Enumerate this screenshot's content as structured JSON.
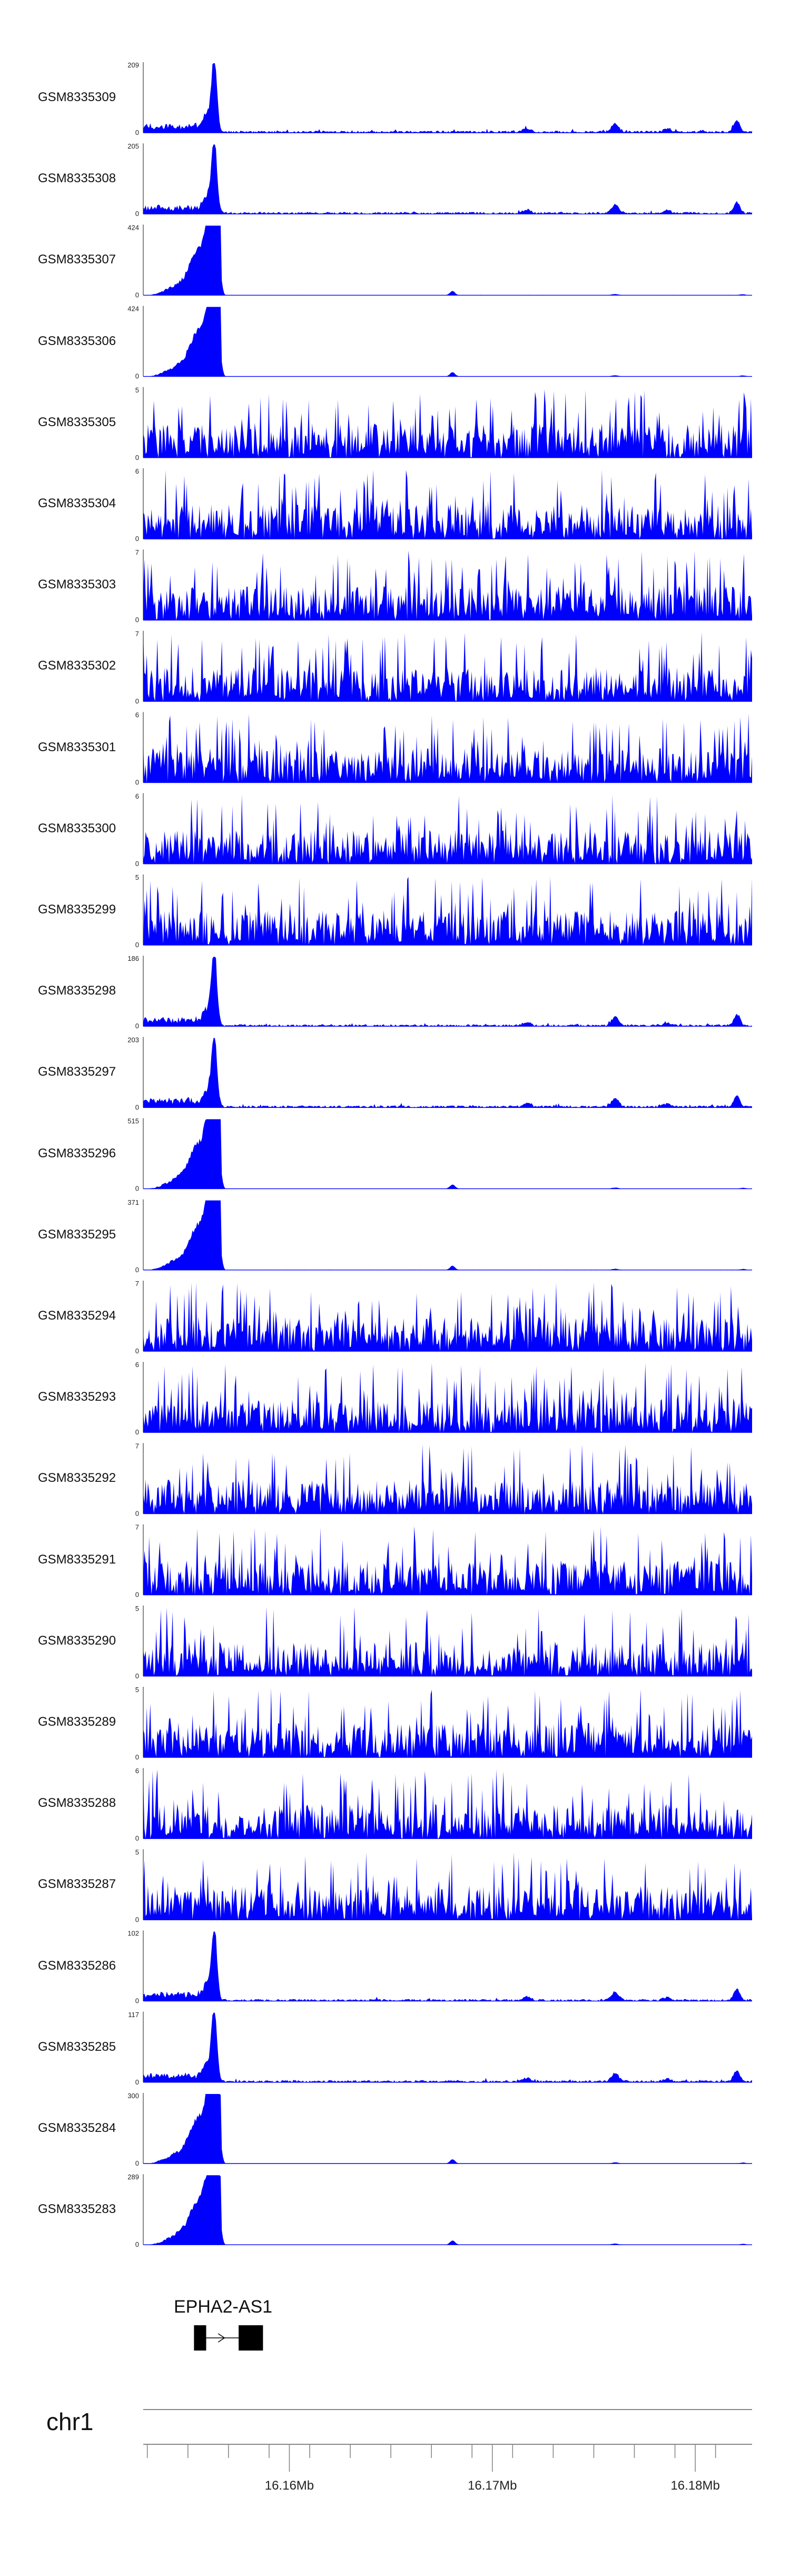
{
  "chart_data": {
    "type": "area",
    "chromosome": "chr1",
    "xlim": [
      16152800,
      16182800
    ],
    "color": "#0000ff",
    "tracks": [
      {
        "name": "GSM8335309",
        "ymax": 209,
        "profile": "peak"
      },
      {
        "name": "GSM8335308",
        "ymax": 205,
        "profile": "peak"
      },
      {
        "name": "GSM8335307",
        "ymax": 424,
        "profile": "broad"
      },
      {
        "name": "GSM8335306",
        "ymax": 424,
        "profile": "broad"
      },
      {
        "name": "GSM8335305",
        "ymax": 5,
        "profile": "noise"
      },
      {
        "name": "GSM8335304",
        "ymax": 6,
        "profile": "noise"
      },
      {
        "name": "GSM8335303",
        "ymax": 7,
        "profile": "noise"
      },
      {
        "name": "GSM8335302",
        "ymax": 7,
        "profile": "noise"
      },
      {
        "name": "GSM8335301",
        "ymax": 6,
        "profile": "noise"
      },
      {
        "name": "GSM8335300",
        "ymax": 6,
        "profile": "noise"
      },
      {
        "name": "GSM8335299",
        "ymax": 5,
        "profile": "noise"
      },
      {
        "name": "GSM8335298",
        "ymax": 186,
        "profile": "peak"
      },
      {
        "name": "GSM8335297",
        "ymax": 203,
        "profile": "peak"
      },
      {
        "name": "GSM8335296",
        "ymax": 515,
        "profile": "broad"
      },
      {
        "name": "GSM8335295",
        "ymax": 371,
        "profile": "broad"
      },
      {
        "name": "GSM8335294",
        "ymax": 7,
        "profile": "noise"
      },
      {
        "name": "GSM8335293",
        "ymax": 6,
        "profile": "noise"
      },
      {
        "name": "GSM8335292",
        "ymax": 7,
        "profile": "noise"
      },
      {
        "name": "GSM8335291",
        "ymax": 7,
        "profile": "noise"
      },
      {
        "name": "GSM8335290",
        "ymax": 5,
        "profile": "noise"
      },
      {
        "name": "GSM8335289",
        "ymax": 5,
        "profile": "noise"
      },
      {
        "name": "GSM8335288",
        "ymax": 6,
        "profile": "noise"
      },
      {
        "name": "GSM8335287",
        "ymax": 5,
        "profile": "noise"
      },
      {
        "name": "GSM8335286",
        "ymax": 102,
        "profile": "peak"
      },
      {
        "name": "GSM8335285",
        "ymax": 117,
        "profile": "peak"
      },
      {
        "name": "GSM8335284",
        "ymax": 300,
        "profile": "broad"
      },
      {
        "name": "GSM8335283",
        "ymax": 289,
        "profile": "broad"
      }
    ],
    "gene": {
      "name": "EPHA2-AS1",
      "start": 16155300,
      "end": 16158700,
      "exons": [
        [
          16155300,
          16155900
        ],
        [
          16157500,
          16158700
        ]
      ],
      "strand": "+"
    },
    "axis": {
      "minor_ticks": [
        16153000,
        16155000,
        16157000,
        16159000,
        16161000,
        16163000,
        16165000,
        16167000,
        16169000,
        16171000,
        16173000,
        16175000,
        16177000,
        16179000,
        16181000
      ],
      "major_ticks": [
        16160000,
        16170000,
        16180000
      ],
      "tick_labels": [
        "16.16Mb",
        "16.17Mb",
        "16.18Mb"
      ]
    }
  }
}
